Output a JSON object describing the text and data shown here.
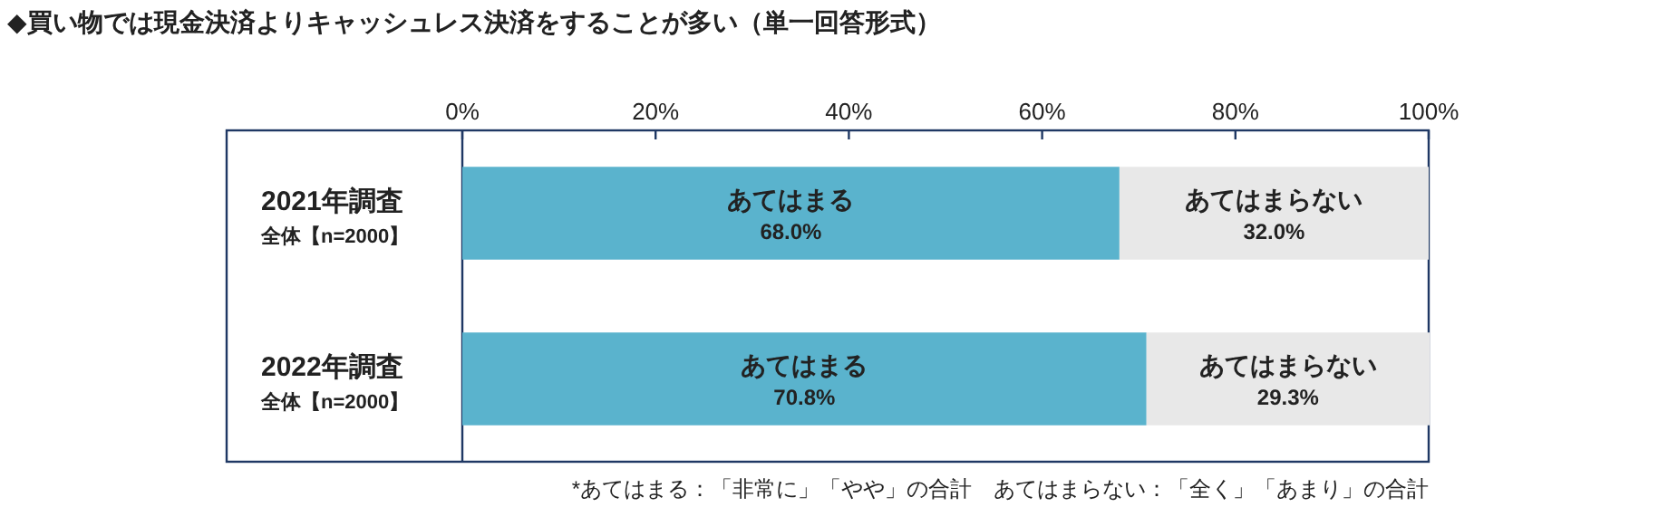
{
  "chart_data": {
    "type": "bar",
    "orientation": "horizontal",
    "stacked": true,
    "title": "◆買い物では現金決済よりキャッシュレス決済をすることが多い（単一回答形式）",
    "categories": [
      "2021年調査",
      "2022年調査"
    ],
    "series": [
      {
        "name": "あてはまる",
        "color": "#5ab3cd",
        "values": [
          68.0,
          70.8
        ],
        "value_labels": [
          "68.0%",
          "70.8%"
        ]
      },
      {
        "name": "あてはまらない",
        "color": "#e8e8e8",
        "values": [
          32.0,
          29.3
        ],
        "value_labels": [
          "32.0%",
          "29.3%"
        ]
      }
    ],
    "xlim": [
      0,
      100
    ],
    "xticks": [
      {
        "value": 0,
        "label": "0%"
      },
      {
        "value": 20,
        "label": "20%"
      },
      {
        "value": 40,
        "label": "40%"
      },
      {
        "value": 60,
        "label": "60%"
      },
      {
        "value": 80,
        "label": "80%"
      },
      {
        "value": 100,
        "label": "100%"
      }
    ],
    "grid": false,
    "legend": false,
    "annotations": [
      "全体【n=2000】",
      "全体【n=2000】",
      "*あてはまる：「非常に」「やや」の合計　あてはまらない：「全く」「あまり」の合計"
    ]
  }
}
